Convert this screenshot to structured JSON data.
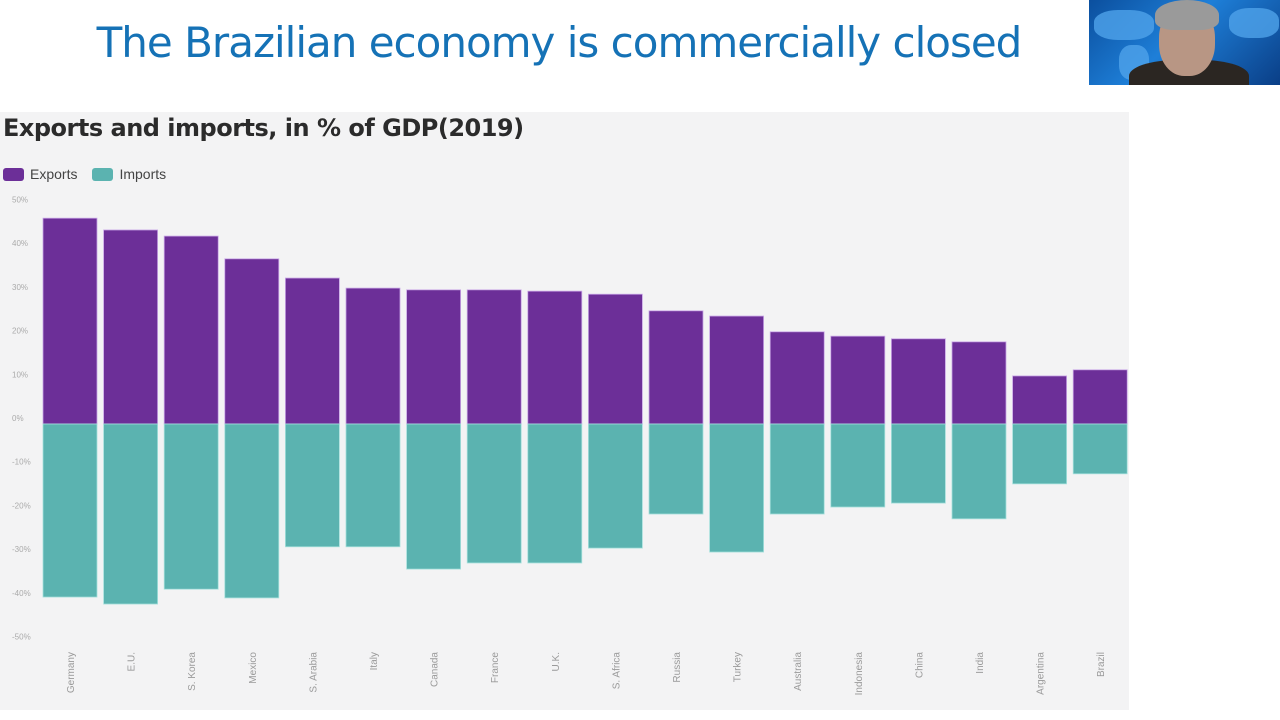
{
  "slide": {
    "title": "The Brazilian economy is commercially closed"
  },
  "webcam": {
    "label": "presenter-video"
  },
  "colors": {
    "exports": "#6c2f98",
    "imports": "#5bb3b0",
    "title": "#1572b6",
    "panel": "#f3f3f4"
  },
  "chart_data": {
    "type": "bar",
    "title": "Exports and imports, in % of GDP(2019)",
    "xlabel": "",
    "ylabel": "",
    "ylim": [
      -50,
      50
    ],
    "yticks": [
      50,
      40,
      30,
      20,
      10,
      0,
      -10,
      -20,
      -30,
      -40,
      -50
    ],
    "ytick_labels": [
      "50%",
      "40%",
      "30%",
      "20%",
      "10%",
      "0%",
      "-10%",
      "-20%",
      "-30%",
      "-40%",
      "-50%"
    ],
    "grid": false,
    "legend": {
      "placement": "top-left",
      "entries": [
        "Exports",
        "Imports"
      ]
    },
    "categories": [
      "Germany",
      "E.U.",
      "S. Korea",
      "Mexico",
      "S. Arabia",
      "Italy",
      "Canada",
      "France",
      "U.K.",
      "S. Africa",
      "Russia",
      "Turkey",
      "Australia",
      "Indonesia",
      "China",
      "India",
      "Argentina",
      "Brazil"
    ],
    "series": [
      {
        "name": "Exports",
        "values": [
          47.1,
          44.4,
          43.0,
          37.8,
          33.4,
          31.1,
          30.7,
          30.7,
          30.4,
          29.7,
          25.9,
          24.7,
          21.1,
          20.1,
          19.5,
          18.8,
          11.0,
          12.4
        ]
      },
      {
        "name": "Imports",
        "values": [
          -39.6,
          -41.2,
          -37.8,
          -39.8,
          -28.1,
          -28.1,
          -33.2,
          -31.8,
          -31.8,
          -28.4,
          -20.6,
          -29.3,
          -20.6,
          -19.0,
          -18.1,
          -21.7,
          -13.7,
          -11.4
        ]
      }
    ]
  }
}
